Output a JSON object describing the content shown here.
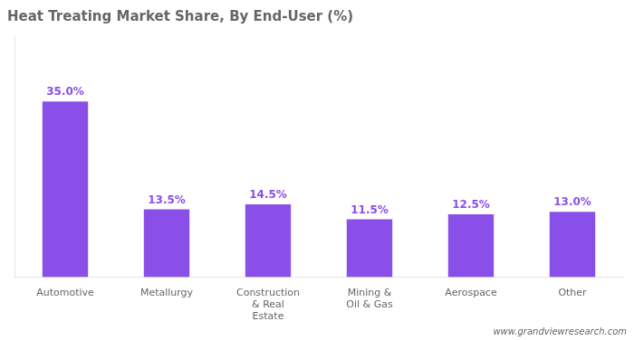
{
  "chart_data": {
    "type": "bar",
    "title": "Heat Treating Market Share, By End-User (%)",
    "categories": [
      "Automotive",
      "Metallurgy",
      "Construction\n& Real\nEstate",
      "Mining &\nOil & Gas",
      "Aerospace",
      "Other"
    ],
    "values": [
      35.0,
      13.5,
      14.5,
      11.5,
      12.5,
      13.0
    ],
    "value_labels": [
      "35.0%",
      "13.5%",
      "14.5%",
      "11.5%",
      "12.5%",
      "13.0%"
    ],
    "data_labels": true,
    "color": "#8A4FE8",
    "ylim": [
      0,
      48
    ],
    "grid": false,
    "tick_labels": "x",
    "annotations": [
      "www.grandviewresearch.com"
    ]
  }
}
